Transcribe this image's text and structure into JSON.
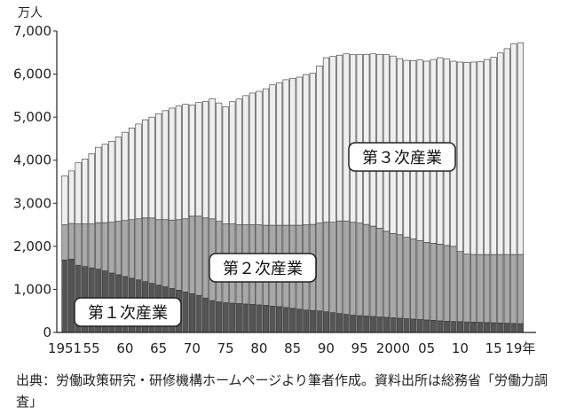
{
  "chart_data": {
    "type": "bar",
    "stacked": true,
    "ylabel": "万人",
    "ylim": [
      0,
      7000
    ],
    "yticks": [
      0,
      1000,
      2000,
      3000,
      4000,
      5000,
      6000,
      7000
    ],
    "ytick_labels": [
      "0",
      "1,000",
      "2,000",
      "3,000",
      "4,000",
      "5,000",
      "6,000",
      "7,000"
    ],
    "xtick_labels": [
      {
        "year": 1951,
        "label": "1951"
      },
      {
        "year": 1955,
        "label": "55"
      },
      {
        "year": 1960,
        "label": "60"
      },
      {
        "year": 1965,
        "label": "65"
      },
      {
        "year": 1970,
        "label": "70"
      },
      {
        "year": 1975,
        "label": "75"
      },
      {
        "year": 1980,
        "label": "80"
      },
      {
        "year": 1985,
        "label": "85"
      },
      {
        "year": 1990,
        "label": "90"
      },
      {
        "year": 1995,
        "label": "95"
      },
      {
        "year": 2000,
        "label": "2000"
      },
      {
        "year": 2005,
        "label": "05"
      },
      {
        "year": 2010,
        "label": "10"
      },
      {
        "year": 2015,
        "label": "15"
      },
      {
        "year": 2019,
        "label": "19年"
      }
    ],
    "grid": false,
    "legend": "inline-callouts",
    "years": [
      1951,
      1952,
      1953,
      1954,
      1955,
      1956,
      1957,
      1958,
      1959,
      1960,
      1961,
      1962,
      1963,
      1964,
      1965,
      1966,
      1967,
      1968,
      1969,
      1970,
      1971,
      1972,
      1973,
      1974,
      1975,
      1976,
      1977,
      1978,
      1979,
      1980,
      1981,
      1982,
      1983,
      1984,
      1985,
      1986,
      1987,
      1988,
      1989,
      1990,
      1991,
      1992,
      1993,
      1994,
      1995,
      1996,
      1997,
      1998,
      1999,
      2000,
      2001,
      2002,
      2003,
      2004,
      2005,
      2006,
      2007,
      2008,
      2009,
      2010,
      2011,
      2012,
      2013,
      2014,
      2015,
      2016,
      2017,
      2018,
      2019
    ],
    "series": [
      {
        "name": "第１次産業",
        "color": "#555555",
        "values": [
          1680,
          1700,
          1560,
          1530,
          1500,
          1470,
          1430,
          1380,
          1340,
          1300,
          1260,
          1220,
          1180,
          1140,
          1100,
          1060,
          1020,
          980,
          940,
          900,
          860,
          800,
          740,
          710,
          690,
          680,
          670,
          660,
          650,
          640,
          630,
          610,
          600,
          580,
          560,
          540,
          520,
          510,
          500,
          480,
          460,
          440,
          420,
          400,
          390,
          380,
          370,
          360,
          350,
          340,
          330,
          320,
          310,
          300,
          290,
          280,
          270,
          260,
          255,
          250,
          245,
          240,
          235,
          230,
          225,
          220,
          215,
          210,
          205
        ]
      },
      {
        "name": "第２次産業",
        "color": "#a8a8a8",
        "values": [
          820,
          830,
          960,
          990,
          1020,
          1080,
          1120,
          1180,
          1240,
          1300,
          1360,
          1420,
          1480,
          1520,
          1520,
          1560,
          1590,
          1640,
          1700,
          1800,
          1840,
          1860,
          1900,
          1870,
          1830,
          1840,
          1830,
          1840,
          1850,
          1860,
          1860,
          1880,
          1890,
          1910,
          1930,
          1950,
          1980,
          2000,
          2040,
          2080,
          2100,
          2150,
          2170,
          2160,
          2150,
          2130,
          2100,
          2060,
          2000,
          1960,
          1940,
          1890,
          1860,
          1830,
          1800,
          1790,
          1780,
          1760,
          1745,
          1630,
          1575,
          1570,
          1575,
          1580,
          1585,
          1590,
          1595,
          1600,
          1605
        ]
      },
      {
        "name": "第３次産業",
        "color": "#efefef",
        "values": [
          1140,
          1220,
          1420,
          1510,
          1630,
          1750,
          1820,
          1880,
          1960,
          2050,
          2130,
          2200,
          2280,
          2340,
          2460,
          2530,
          2600,
          2640,
          2660,
          2580,
          2640,
          2700,
          2790,
          2750,
          2720,
          2840,
          2920,
          3000,
          3060,
          3100,
          3170,
          3260,
          3310,
          3380,
          3410,
          3440,
          3490,
          3510,
          3650,
          3820,
          3850,
          3850,
          3880,
          3890,
          3910,
          3950,
          4000,
          4040,
          4100,
          4120,
          4090,
          4110,
          4140,
          4200,
          4210,
          4270,
          4330,
          4330,
          4300,
          4400,
          4450,
          4470,
          4480,
          4530,
          4580,
          4680,
          4780,
          4890,
          4920
        ]
      }
    ]
  },
  "callouts": {
    "tertiary": "第３次産業",
    "secondary": "第２次産業",
    "primary": "第１次産業"
  },
  "source_note": "出典：労働政策研究・研修機構ホームページより筆者作成。資料出所は総務省「労働力調査」"
}
